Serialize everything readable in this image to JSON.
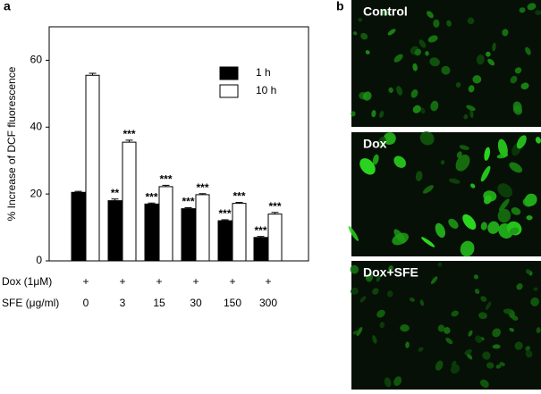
{
  "chart_data": {
    "type": "bar",
    "panel_label": "a",
    "y_label": "% Increase of DCF fluorescence",
    "x_label": "SFE (μg/ml)",
    "categories": [
      "0",
      "3",
      "15",
      "30",
      "150",
      "300"
    ],
    "treatment_rows": [
      {
        "label": "Dox (1μM)",
        "values": [
          "+",
          "+",
          "+",
          "+",
          "+",
          "+"
        ]
      }
    ],
    "series": [
      {
        "name": "1 h",
        "color": "#000000",
        "values": [
          20.5,
          18,
          17,
          15.6,
          12,
          7
        ],
        "errors": [
          0.3,
          0.5,
          0.3,
          0.3,
          0.3,
          0.3
        ],
        "significance": [
          null,
          "**",
          "***",
          "***",
          "***",
          "***"
        ]
      },
      {
        "name": "10 h",
        "color": "#ffffff",
        "values": [
          55.5,
          35.5,
          22.2,
          19.8,
          17.2,
          14
        ],
        "errors": [
          0.6,
          0.6,
          0.4,
          0.3,
          0.3,
          0.5
        ],
        "significance": [
          null,
          "***",
          "***",
          "***",
          "***",
          "***"
        ]
      }
    ],
    "ylim": [
      0,
      70
    ],
    "yticks": [
      0,
      20,
      40,
      60
    ]
  },
  "images": {
    "panel_label": "b",
    "labels": [
      "Control",
      "Dox",
      "Dox+SFE"
    ]
  }
}
